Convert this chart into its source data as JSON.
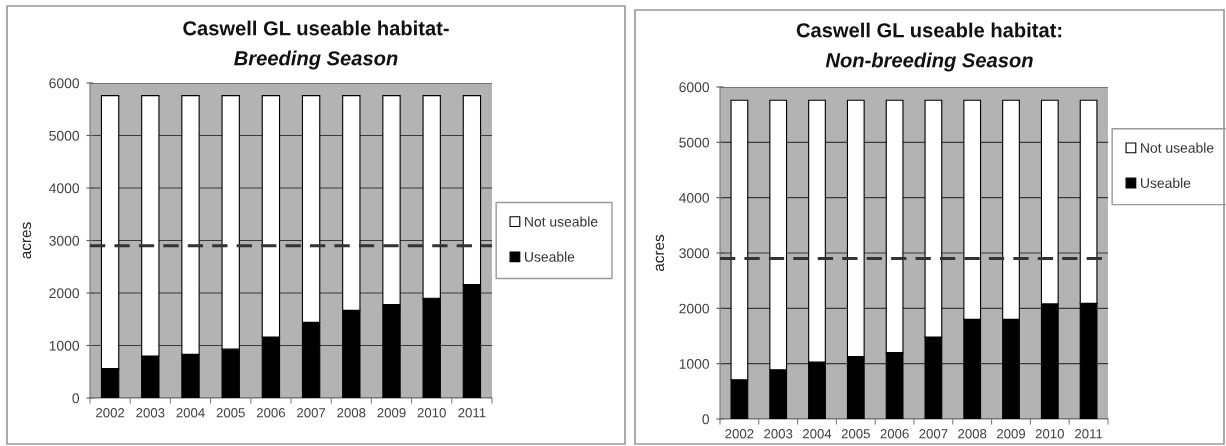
{
  "chart_data": [
    {
      "type": "bar",
      "title": "Caswell GL useable habitat-",
      "subtitle": "Breeding Season",
      "ylabel": "acres",
      "categories": [
        "2002",
        "2003",
        "2004",
        "2005",
        "2006",
        "2007",
        "2008",
        "2009",
        "2010",
        "2011"
      ],
      "stacked": true,
      "series": [
        {
          "name": "Useable",
          "color": "#000000",
          "values": [
            560,
            800,
            830,
            930,
            1160,
            1440,
            1670,
            1780,
            1900,
            2160
          ]
        },
        {
          "name": "Not useable",
          "color": "#ffffff",
          "values": [
            5200,
            4960,
            4930,
            4830,
            4600,
            4320,
            4090,
            3980,
            3860,
            3600
          ]
        }
      ],
      "ylim": [
        0,
        6000
      ],
      "yticks": [
        0,
        1000,
        2000,
        3000,
        4000,
        5000,
        6000
      ],
      "grid": "y",
      "legend": "right",
      "ref_lines": [
        {
          "axis": "y",
          "value": 2900,
          "color": "#333333",
          "line_style": "dashed"
        }
      ]
    },
    {
      "type": "bar",
      "title": "Caswell GL useable habitat:",
      "subtitle": "Non-breeding Season",
      "ylabel": "acres",
      "categories": [
        "2002",
        "2003",
        "2004",
        "2005",
        "2006",
        "2007",
        "2008",
        "2009",
        "2010",
        "2011"
      ],
      "stacked": true,
      "series": [
        {
          "name": "Useable",
          "color": "#000000",
          "values": [
            710,
            890,
            1030,
            1130,
            1200,
            1480,
            1800,
            1800,
            2080,
            2090
          ]
        },
        {
          "name": "Not useable",
          "color": "#ffffff",
          "values": [
            5050,
            4870,
            4730,
            4630,
            4560,
            4280,
            3960,
            3960,
            3680,
            3670
          ]
        }
      ],
      "ylim": [
        0,
        6000
      ],
      "yticks": [
        0,
        1000,
        2000,
        3000,
        4000,
        5000,
        6000
      ],
      "grid": "y",
      "legend": "right",
      "ref_lines": [
        {
          "axis": "y",
          "value": 2900,
          "color": "#333333",
          "line_style": "dashed"
        }
      ]
    }
  ]
}
